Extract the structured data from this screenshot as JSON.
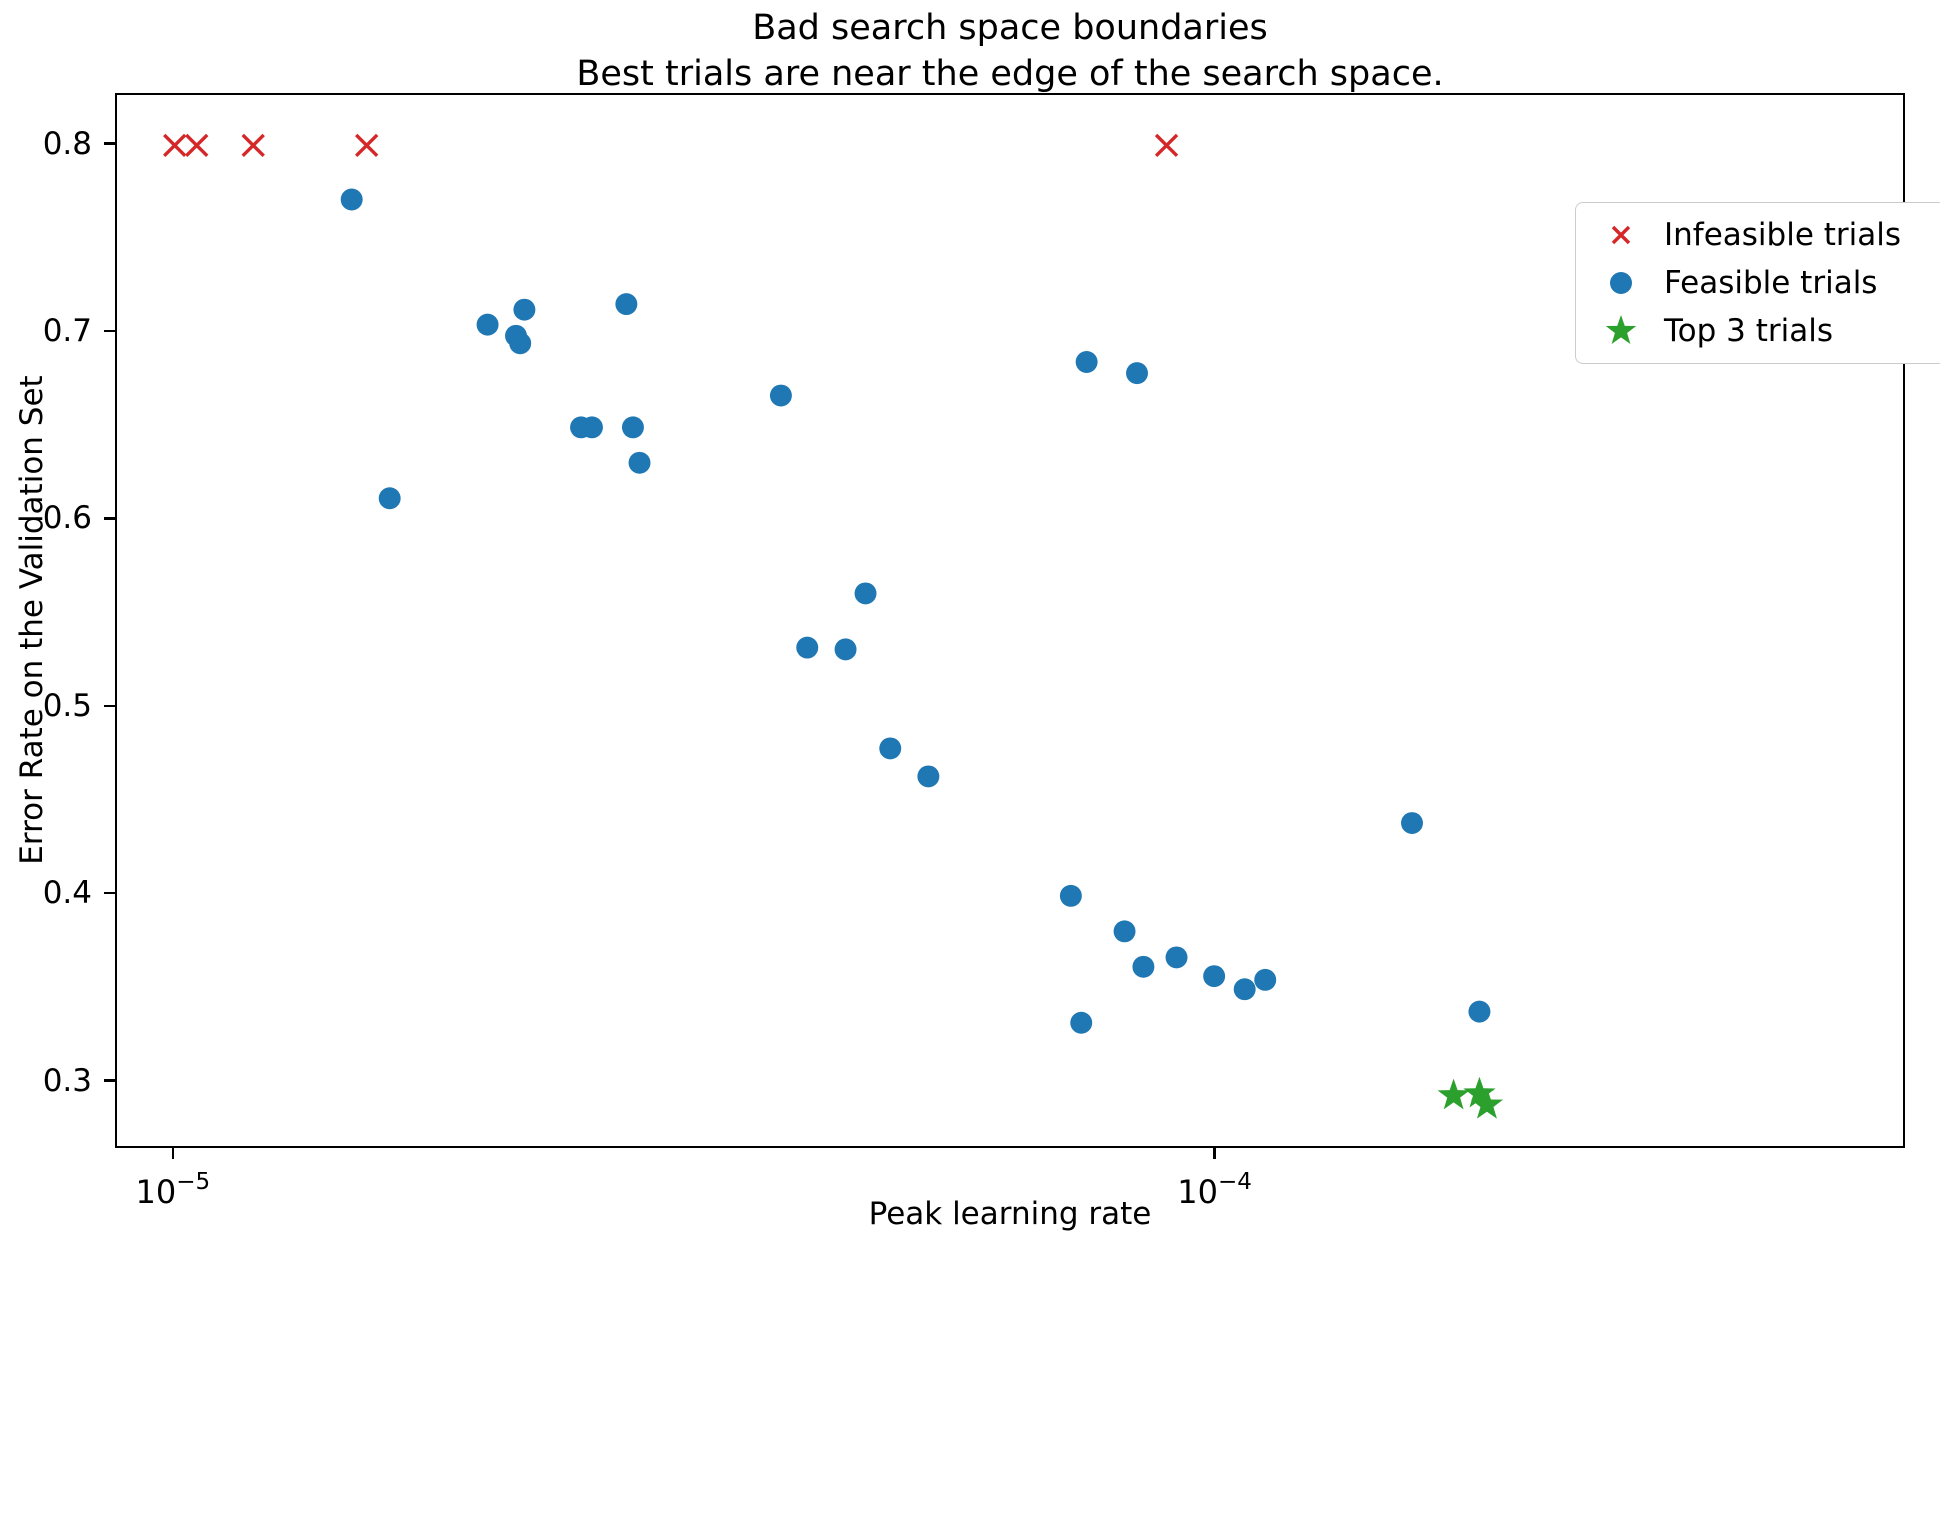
{
  "figure": {
    "title_line1": "Bad search space boundaries",
    "title_line2": "Best trials are near the edge of the search space.",
    "xlabel": "Peak learning rate",
    "ylabel": "Error Rate on the Validation Set"
  },
  "legend": {
    "items": [
      {
        "label": "Infeasible trials",
        "marker": "x",
        "color": "#d62728"
      },
      {
        "label": "Feasible trials",
        "marker": "circle",
        "color": "#1f77b4"
      },
      {
        "label": "Top 3 trials",
        "marker": "star",
        "color": "#2ca02c"
      }
    ]
  },
  "chart_data": {
    "type": "scatter",
    "title": "Bad search space boundaries\nBest trials are near the edge of the search space.",
    "xlabel": "Peak learning rate",
    "ylabel": "Error Rate on the Validation Set",
    "x_scale": "log",
    "xlim": [
      8.8e-06,
      0.00046
    ],
    "ylim": [
      0.264,
      0.827
    ],
    "grid": false,
    "legend_position": "upper right",
    "x_ticks": [
      {
        "value": 1e-05,
        "base": "10",
        "exp": "−5"
      },
      {
        "value": 0.0001,
        "base": "10",
        "exp": "−4"
      }
    ],
    "y_ticks": [
      0.3,
      0.4,
      0.5,
      0.6,
      0.7,
      0.8
    ],
    "series": [
      {
        "name": "Infeasible trials",
        "marker": "x",
        "color": "#d62728",
        "points": [
          [
            1e-05,
            0.8
          ],
          [
            1.05e-05,
            0.8
          ],
          [
            1.19e-05,
            0.8
          ],
          [
            1.53e-05,
            0.8
          ],
          [
            9e-05,
            0.8
          ]
        ]
      },
      {
        "name": "Feasible trials",
        "marker": "circle",
        "color": "#1f77b4",
        "points": [
          [
            1.48e-05,
            0.771
          ],
          [
            2e-05,
            0.704
          ],
          [
            2.17e-05,
            0.712
          ],
          [
            2.13e-05,
            0.698
          ],
          [
            2.15e-05,
            0.694
          ],
          [
            2.72e-05,
            0.715
          ],
          [
            2.46e-05,
            0.649
          ],
          [
            2.52e-05,
            0.649
          ],
          [
            2.76e-05,
            0.649
          ],
          [
            2.8e-05,
            0.63
          ],
          [
            1.61e-05,
            0.611
          ],
          [
            3.83e-05,
            0.666
          ],
          [
            4.62e-05,
            0.56
          ],
          [
            4.06e-05,
            0.531
          ],
          [
            4.42e-05,
            0.53
          ],
          [
            4.88e-05,
            0.477
          ],
          [
            5.31e-05,
            0.462
          ],
          [
            7.54e-05,
            0.684
          ],
          [
            8.43e-05,
            0.678
          ],
          [
            7.28e-05,
            0.398
          ],
          [
            8.2e-05,
            0.379
          ],
          [
            8.55e-05,
            0.36
          ],
          [
            9.2e-05,
            0.365
          ],
          [
            0.0001,
            0.355
          ],
          [
            0.000107,
            0.348
          ],
          [
            0.000112,
            0.353
          ],
          [
            7.45e-05,
            0.33
          ],
          [
            0.000155,
            0.437
          ],
          [
            0.00018,
            0.336
          ]
        ]
      },
      {
        "name": "Top 3 trials",
        "marker": "star",
        "color": "#2ca02c",
        "points": [
          [
            0.00017,
            0.291
          ],
          [
            0.00018,
            0.292
          ],
          [
            0.000183,
            0.286
          ]
        ]
      }
    ]
  }
}
